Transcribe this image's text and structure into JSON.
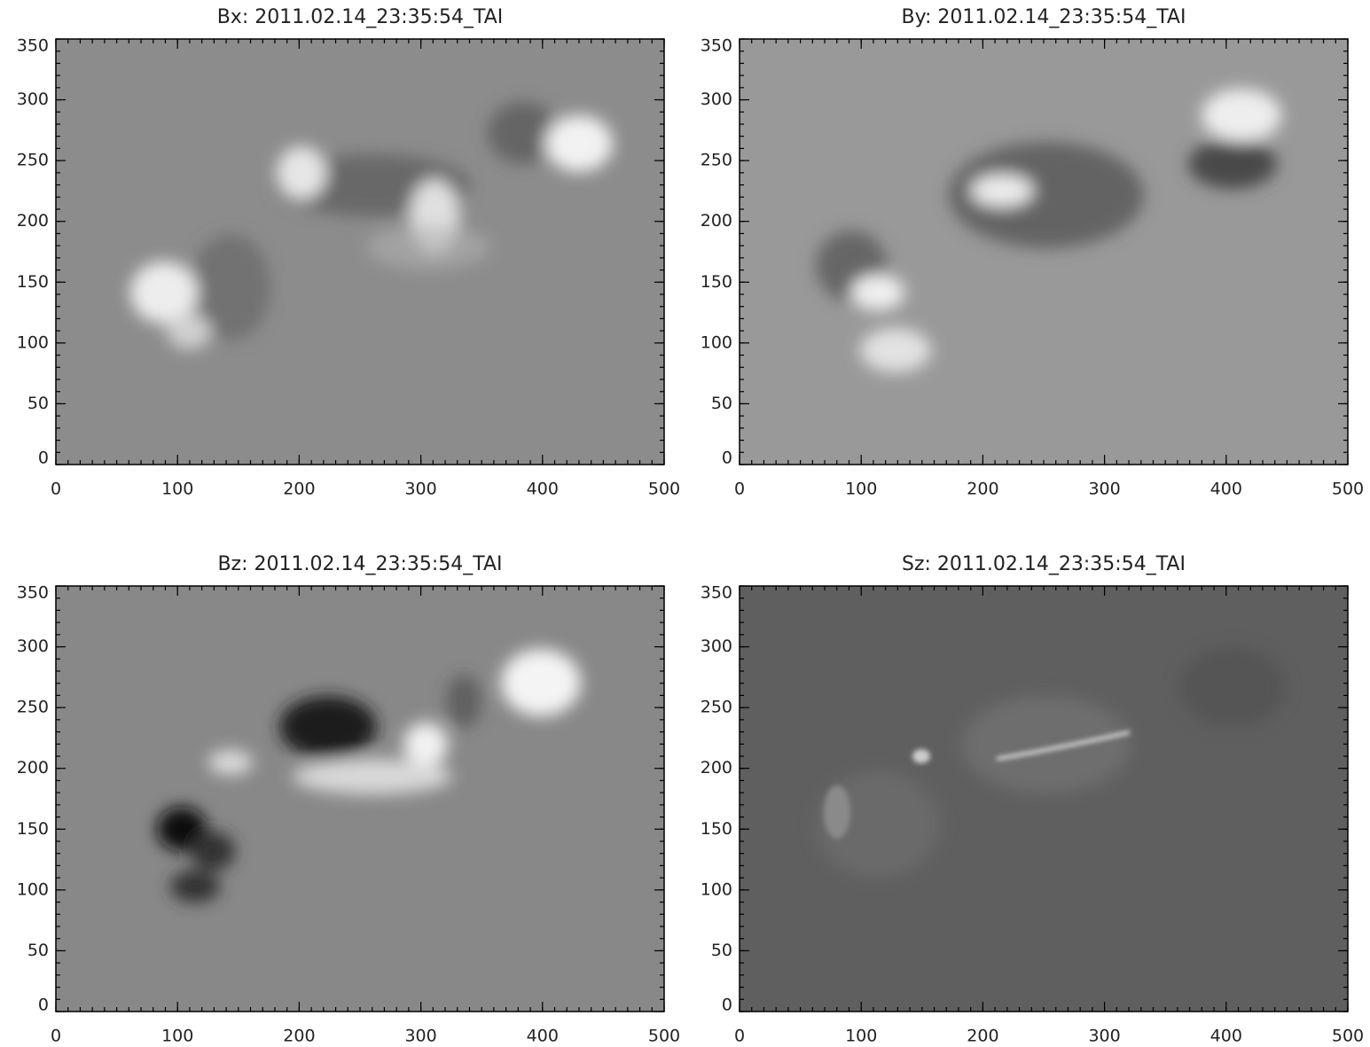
{
  "chart_data": [
    {
      "type": "image",
      "title": "Bx: 2011.02.14_23:35:54_TAI",
      "xlim": [
        0,
        500
      ],
      "ylim": [
        0,
        350
      ],
      "xticks": [
        0,
        100,
        200,
        300,
        400,
        500
      ],
      "yticks": [
        0,
        50,
        100,
        150,
        200,
        250,
        300,
        350
      ],
      "xminor": 10,
      "yminor": 10,
      "background": "#8c8c8c"
    },
    {
      "type": "image",
      "title": "By: 2011.02.14_23:35:54_TAI",
      "xlim": [
        0,
        500
      ],
      "ylim": [
        0,
        350
      ],
      "xticks": [
        0,
        100,
        200,
        300,
        400,
        500
      ],
      "yticks": [
        0,
        50,
        100,
        150,
        200,
        250,
        300,
        350
      ],
      "xminor": 10,
      "yminor": 10,
      "background": "#999999"
    },
    {
      "type": "image",
      "title": "Bz: 2011.02.14_23:35:54_TAI",
      "xlim": [
        0,
        500
      ],
      "ylim": [
        0,
        350
      ],
      "xticks": [
        0,
        100,
        200,
        300,
        400,
        500
      ],
      "yticks": [
        0,
        50,
        100,
        150,
        200,
        250,
        300,
        350
      ],
      "xminor": 10,
      "yminor": 10,
      "background": "#888888"
    },
    {
      "type": "image",
      "title": "Sz: 2011.02.14_23:35:54_TAI",
      "xlim": [
        0,
        500
      ],
      "ylim": [
        0,
        350
      ],
      "xticks": [
        0,
        100,
        200,
        300,
        400,
        500
      ],
      "yticks": [
        0,
        50,
        100,
        150,
        200,
        250,
        300,
        350
      ],
      "xminor": 10,
      "yminor": 10,
      "background": "#5f5f5f"
    }
  ]
}
